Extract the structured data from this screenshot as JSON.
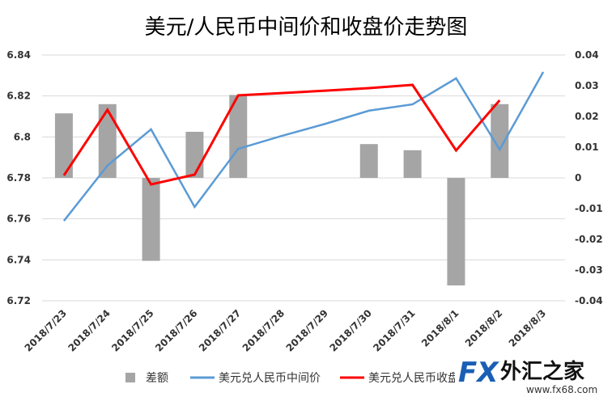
{
  "chart_data": {
    "type": "combo",
    "title": "美元/人民币中间价和收盘价走势图",
    "categories": [
      "2018/7/23",
      "2018/7/24",
      "2018/7/25",
      "2018/7/26",
      "2018/7/27",
      "2018/7/28",
      "2018/7/29",
      "2018/7/30",
      "2018/7/31",
      "2018/8/1",
      "2018/8/2",
      "2018/8/3"
    ],
    "series": [
      {
        "name": "差额",
        "type": "bar",
        "axis": "y2",
        "color": "#a5a5a5",
        "values": [
          0.021,
          0.024,
          -0.027,
          0.015,
          0.027,
          null,
          null,
          0.011,
          0.009,
          -0.035,
          0.024,
          null
        ]
      },
      {
        "name": "美元兑人民币中间价",
        "type": "line",
        "color": "#5b9bd5",
        "values": [
          6.759,
          6.786,
          6.8037,
          6.7658,
          6.7942,
          6.8005,
          6.8064,
          6.8128,
          6.8159,
          6.8286,
          6.7938,
          6.8317
        ]
      },
      {
        "name": "美元兑人民币收盘价",
        "type": "line",
        "color": "#ff0000",
        "values": [
          6.7812,
          6.8132,
          6.7768,
          6.7816,
          6.8203,
          6.8214,
          6.8226,
          6.8238,
          6.8254,
          6.7934,
          6.8179,
          null
        ]
      }
    ],
    "ylim": [
      6.72,
      6.84
    ],
    "yticks": [
      6.72,
      6.74,
      6.76,
      6.78,
      6.8,
      6.82,
      6.84
    ],
    "y2lim": [
      -0.04,
      0.04
    ],
    "y2ticks": [
      -0.04,
      -0.03,
      -0.02,
      -0.01,
      0,
      0.01,
      0.02,
      0.03,
      0.04
    ],
    "grid": true
  },
  "logo": {
    "brand": "FX",
    "name": "外汇之家",
    "url": "www.fx68.com"
  }
}
